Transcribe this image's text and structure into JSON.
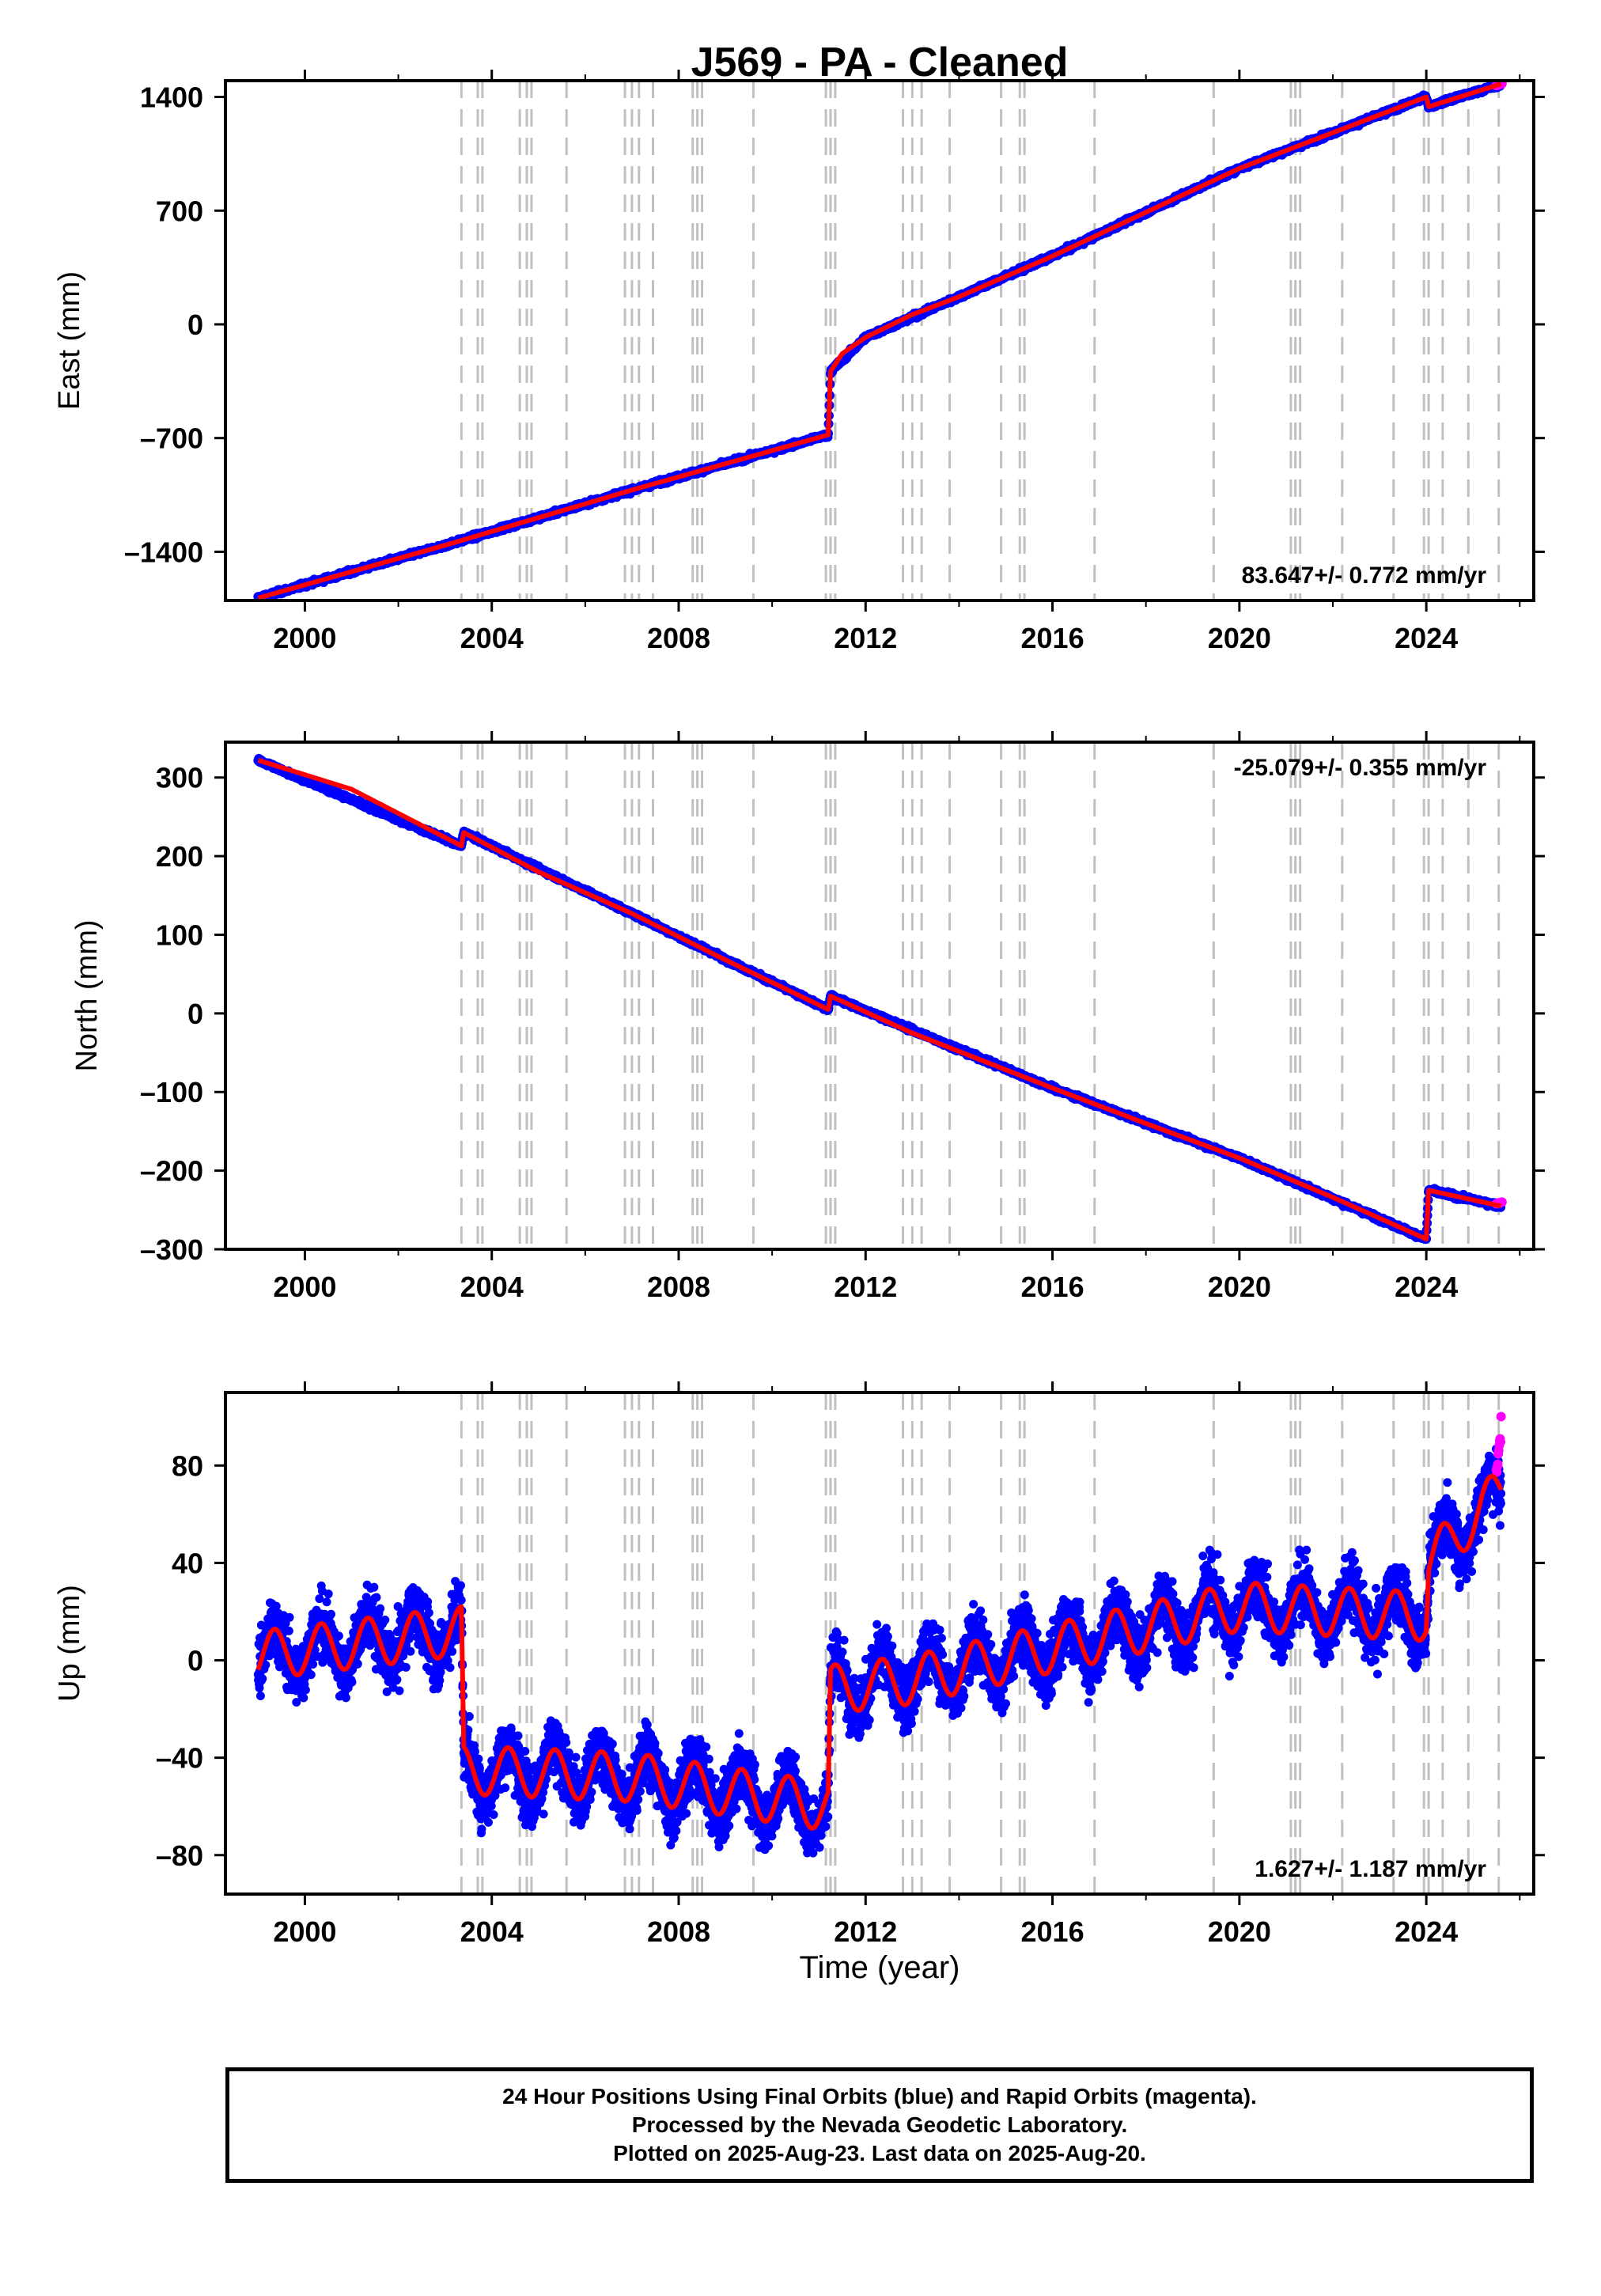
{
  "title": "J569  - PA - Cleaned",
  "xlabel": "Time (year)",
  "colors": {
    "final_orbits": "#0000ff",
    "rapid_orbits": "#ff00ff",
    "model": "#ff0000",
    "event_lines": "#c0c0c0",
    "axis": "#000000"
  },
  "footer": {
    "line1": "24 Hour Positions Using Final Orbits (blue) and Rapid Orbits (magenta).",
    "line2": "Processed by the Nevada Geodetic Laboratory.",
    "line3": "Plotted on 2025-Aug-23. Last data on 2025-Aug-20."
  },
  "chart_data": [
    {
      "type": "scatter",
      "ylabel": "East (mm)",
      "rate_label": "83.647+/- 0.772 mm/yr",
      "rate_position": "bottom-right",
      "xlim": [
        1998.3,
        2026.3
      ],
      "ylim": [
        -1700,
        1500
      ],
      "x_ticks": [
        2000,
        2004,
        2008,
        2012,
        2016,
        2020,
        2024
      ],
      "y_ticks": [
        -1400,
        -700,
        0,
        700,
        1400
      ],
      "y_tick_labels": [
        "–1400",
        "–700",
        "0",
        "700",
        "1400"
      ],
      "grid": false,
      "series": [
        {
          "color": "#0000ff",
          "points": [
            [
              1999.0,
              -1685
            ],
            [
              2003.0,
              -1360
            ],
            [
              2007.0,
              -1020
            ],
            [
              2011.2,
              -680
            ],
            [
              2011.25,
              -290
            ],
            [
              2012.0,
              -80
            ],
            [
              2014.0,
              170
            ],
            [
              2016.0,
              420
            ],
            [
              2020.0,
              960
            ],
            [
              2024.0,
              1400
            ],
            [
              2024.05,
              1340
            ],
            [
              2025.6,
              1480
            ]
          ]
        },
        {
          "color": "#ff00ff",
          "points": [
            [
              2025.5,
              1470
            ],
            [
              2025.62,
              1482
            ]
          ]
        }
      ],
      "model": [
        [
          1999.0,
          -1685
        ],
        [
          2003.0,
          -1360
        ],
        [
          2007.0,
          -1020
        ],
        [
          2011.2,
          -680
        ],
        [
          2011.25,
          -290
        ],
        [
          2011.5,
          -180
        ],
        [
          2012.0,
          -80
        ],
        [
          2013.0,
          60
        ],
        [
          2014.0,
          170
        ],
        [
          2016.0,
          420
        ],
        [
          2018.0,
          690
        ],
        [
          2020.0,
          960
        ],
        [
          2022.0,
          1180
        ],
        [
          2024.0,
          1400
        ],
        [
          2024.05,
          1340
        ],
        [
          2025.6,
          1480
        ]
      ]
    },
    {
      "type": "scatter",
      "ylabel": "North (mm)",
      "rate_label": "-25.079+/- 0.355 mm/yr",
      "rate_position": "top-right",
      "xlim": [
        1998.3,
        2026.3
      ],
      "ylim": [
        -300,
        345
      ],
      "x_ticks": [
        2000,
        2004,
        2008,
        2012,
        2016,
        2020,
        2024
      ],
      "y_ticks": [
        -300,
        -200,
        -100,
        0,
        100,
        200,
        300
      ],
      "y_tick_labels": [
        "–300",
        "–200",
        "–100",
        "0",
        "100",
        "200",
        "300"
      ],
      "grid": false,
      "series": [
        {
          "color": "#0000ff",
          "points": [
            [
              1999.0,
              322
            ],
            [
              2003.35,
              213
            ],
            [
              2003.4,
              230
            ],
            [
              2007.0,
              127
            ],
            [
              2011.2,
              5
            ],
            [
              2011.25,
              22
            ],
            [
              2016.0,
              -95
            ],
            [
              2020.0,
              -184
            ],
            [
              2024.0,
              -287
            ],
            [
              2024.05,
              -225
            ],
            [
              2025.6,
              -245
            ]
          ]
        },
        {
          "color": "#ff00ff",
          "points": [
            [
              2025.5,
              -242
            ],
            [
              2025.62,
              -240
            ]
          ]
        }
      ],
      "model": [
        [
          1999.0,
          322
        ],
        [
          2001.0,
          285
        ],
        [
          2003.35,
          213
        ],
        [
          2003.4,
          230
        ],
        [
          2005.0,
          180
        ],
        [
          2007.0,
          127
        ],
        [
          2009.0,
          68
        ],
        [
          2011.2,
          5
        ],
        [
          2011.25,
          22
        ],
        [
          2013.0,
          -25
        ],
        [
          2016.0,
          -95
        ],
        [
          2018.0,
          -140
        ],
        [
          2020.0,
          -184
        ],
        [
          2022.0,
          -234
        ],
        [
          2024.0,
          -287
        ],
        [
          2024.05,
          -225
        ],
        [
          2025.6,
          -245
        ]
      ]
    },
    {
      "type": "scatter",
      "ylabel": "Up (mm)",
      "rate_label": "1.627+/- 1.187 mm/yr",
      "rate_position": "bottom-right",
      "xlim": [
        1998.3,
        2026.3
      ],
      "ylim": [
        -96,
        110
      ],
      "x_ticks": [
        2000,
        2004,
        2008,
        2012,
        2016,
        2020,
        2024
      ],
      "y_ticks": [
        -80,
        -40,
        0,
        40,
        80
      ],
      "y_tick_labels": [
        "–80",
        "–40",
        "0",
        "40",
        "80"
      ],
      "grid": false,
      "seasonal_amplitude_mm": 10,
      "series": [
        {
          "color": "#0000ff",
          "points": [
            [
              1999.0,
              2
            ],
            [
              2003.35,
              12
            ],
            [
              2003.4,
              -45
            ],
            [
              2007.0,
              -48
            ],
            [
              2011.2,
              -60
            ],
            [
              2011.25,
              -12
            ],
            [
              2016.0,
              5
            ],
            [
              2020.0,
              22
            ],
            [
              2024.0,
              18
            ],
            [
              2024.05,
              40
            ],
            [
              2025.6,
              70
            ]
          ]
        },
        {
          "color": "#ff00ff",
          "points": [
            [
              2025.5,
              80
            ],
            [
              2025.55,
              88
            ],
            [
              2025.6,
              95
            ]
          ]
        }
      ],
      "model": [
        [
          1999.0,
          2
        ],
        [
          2003.35,
          12
        ],
        [
          2003.4,
          -45
        ],
        [
          2007.0,
          -48
        ],
        [
          2011.2,
          -60
        ],
        [
          2011.25,
          -12
        ],
        [
          2013.0,
          -8
        ],
        [
          2016.0,
          5
        ],
        [
          2020.0,
          22
        ],
        [
          2024.0,
          18
        ],
        [
          2024.05,
          40
        ],
        [
          2025.6,
          70
        ]
      ]
    }
  ],
  "event_lines": [
    2003.35,
    2003.7,
    2003.8,
    2004.6,
    2004.75,
    2004.85,
    2005.6,
    2006.85,
    2007.0,
    2007.15,
    2007.45,
    2008.3,
    2008.4,
    2008.5,
    2009.6,
    2011.15,
    2011.25,
    2011.35,
    2012.8,
    2013.0,
    2013.2,
    2013.8,
    2014.9,
    2015.3,
    2015.4,
    2016.9,
    2019.45,
    2021.1,
    2021.2,
    2021.3,
    2022.2,
    2023.3,
    2023.95,
    2024.05,
    2024.35,
    2024.9,
    2025.55
  ]
}
